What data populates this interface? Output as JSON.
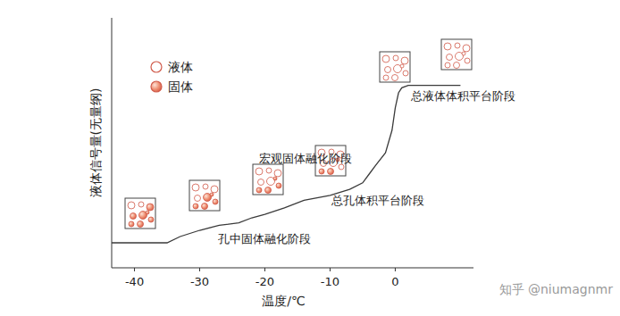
{
  "chart_data": {
    "type": "line",
    "x_label": "温度/℃",
    "y_label": "液体信号量(无量纲)",
    "x": [
      -44,
      -35,
      -33,
      -30,
      -27,
      -24,
      -22,
      -20,
      -17,
      -14,
      -10,
      -7,
      -5,
      -4,
      -3,
      -1.5,
      -0.5,
      0,
      0.5,
      1,
      2,
      5,
      10
    ],
    "series": [
      {
        "color": "#3a3a3a",
        "values": [
          10,
          10,
          12.5,
          15,
          17,
          18,
          20,
          21.4,
          24,
          27,
          29,
          31.4,
          34,
          37.5,
          41,
          46,
          55,
          64,
          70,
          72,
          73,
          73,
          73
        ]
      }
    ],
    "xlim": [
      -43.5,
      12
    ],
    "xticks": [
      -40,
      -30,
      -20,
      -10,
      0
    ],
    "ylim": [
      0,
      100
    ],
    "tick_labels": "x",
    "legend_items": [
      {
        "label": "液体",
        "marker": "hollow"
      },
      {
        "label": "固体",
        "marker": "filled"
      }
    ],
    "annotations": [
      "孔中固体融化阶段",
      "总孔体积平台阶段",
      "宏观固体融化阶段",
      "总液体体积平台阶段"
    ],
    "watermark": "知乎 @niumagnmr"
  }
}
